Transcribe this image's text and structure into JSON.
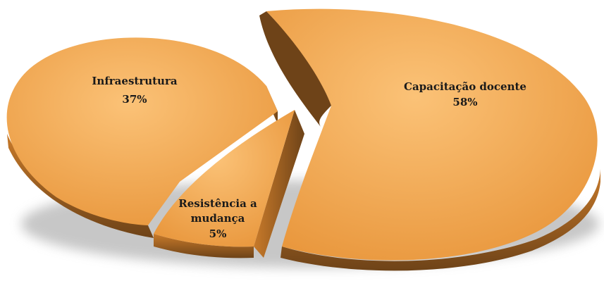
{
  "chart_data": {
    "type": "pie",
    "style": "3d-exploded",
    "title": "",
    "slices": [
      {
        "name": "Capacitação docente",
        "percent_label": "58%",
        "value": 58
      },
      {
        "name": "Infraestrutura",
        "percent_label": "37%",
        "value": 37
      },
      {
        "name": "Resistência a mudança",
        "percent_label": "5%",
        "value": 5
      }
    ],
    "colors": {
      "top_light": "#fbc277",
      "top_dark": "#e8953a",
      "side": "#c87a2a",
      "side_dark": "#6e4318",
      "shadow": "#9a9a9a"
    }
  }
}
